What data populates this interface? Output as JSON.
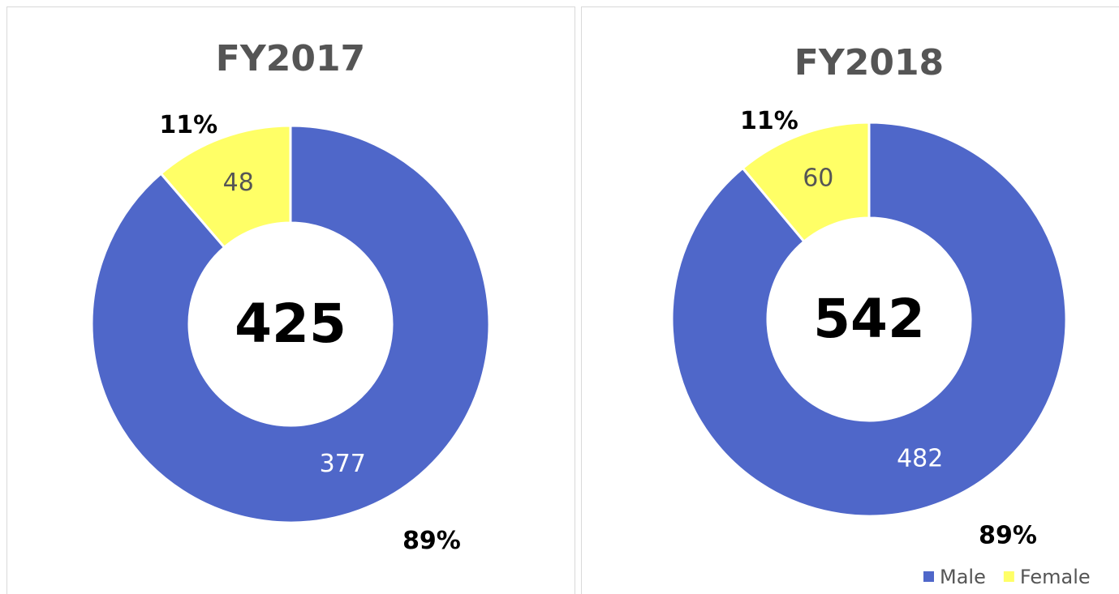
{
  "chart_data": [
    {
      "type": "donut",
      "title": "FY2017",
      "categories": [
        "Male",
        "Female"
      ],
      "values": [
        377,
        48
      ],
      "shares": [
        89,
        11
      ],
      "share_labels": [
        "89%",
        "11%"
      ],
      "total": 425,
      "colors": [
        "#4f67c9",
        "#ffff66"
      ]
    },
    {
      "type": "donut",
      "title": "FY2018",
      "categories": [
        "Male",
        "Female"
      ],
      "values": [
        482,
        60
      ],
      "shares": [
        89,
        11
      ],
      "share_labels": [
        "89%",
        "11%"
      ],
      "total": 542,
      "colors": [
        "#4f67c9",
        "#ffff66"
      ],
      "legend": "bottom-right"
    }
  ]
}
